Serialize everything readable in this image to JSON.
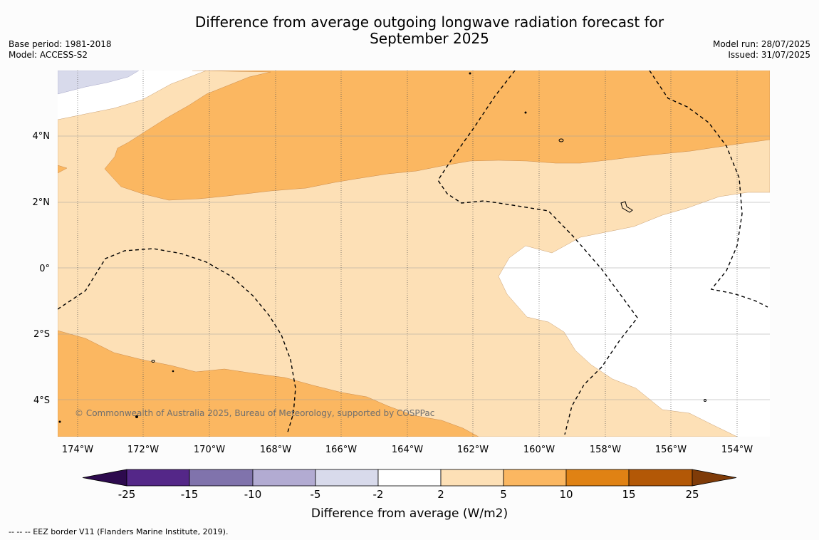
{
  "title_line1": "Difference from average outgoing longwave radiation forecast for",
  "title_line2": "September 2025",
  "base_period": "Base period: 1981-2018",
  "model": "Model: ACCESS-S2",
  "model_run": "Model run: 28/07/2025",
  "issued": "Issued: 31/07/2025",
  "lat_ticks": [
    "4°N",
    "2°N",
    "0°",
    "2°S",
    "4°S"
  ],
  "lon_ticks": [
    "174°W",
    "172°W",
    "170°W",
    "168°W",
    "166°W",
    "164°W",
    "162°W",
    "160°W",
    "158°W",
    "156°W",
    "154°W"
  ],
  "copyright": "© Commonwealth of Australia 2025, Bureau of Meteorology, supported by COSPPac",
  "colorbar": {
    "title": "Difference from average (W/m2)",
    "labels": [
      "-25",
      "-15",
      "-10",
      "-5",
      "-2",
      "2",
      "5",
      "10",
      "15",
      "25"
    ],
    "colors": {
      "below_-25": "#2d0a4e",
      "-25_-15": "#542788",
      "-15_-10": "#8073ac",
      "-10_-5": "#b2abd2",
      "-5_-2": "#d8daeb",
      "-2_2": "#ffffff",
      "2_5": "#fde0b6",
      "5_10": "#fbb761",
      "10_15": "#e08214",
      "15_25": "#b35806",
      "above_25": "#7f3b08"
    }
  },
  "footer": "--  --  -- EEZ border V11 (Flanders Marine Institute, 2019)."
}
